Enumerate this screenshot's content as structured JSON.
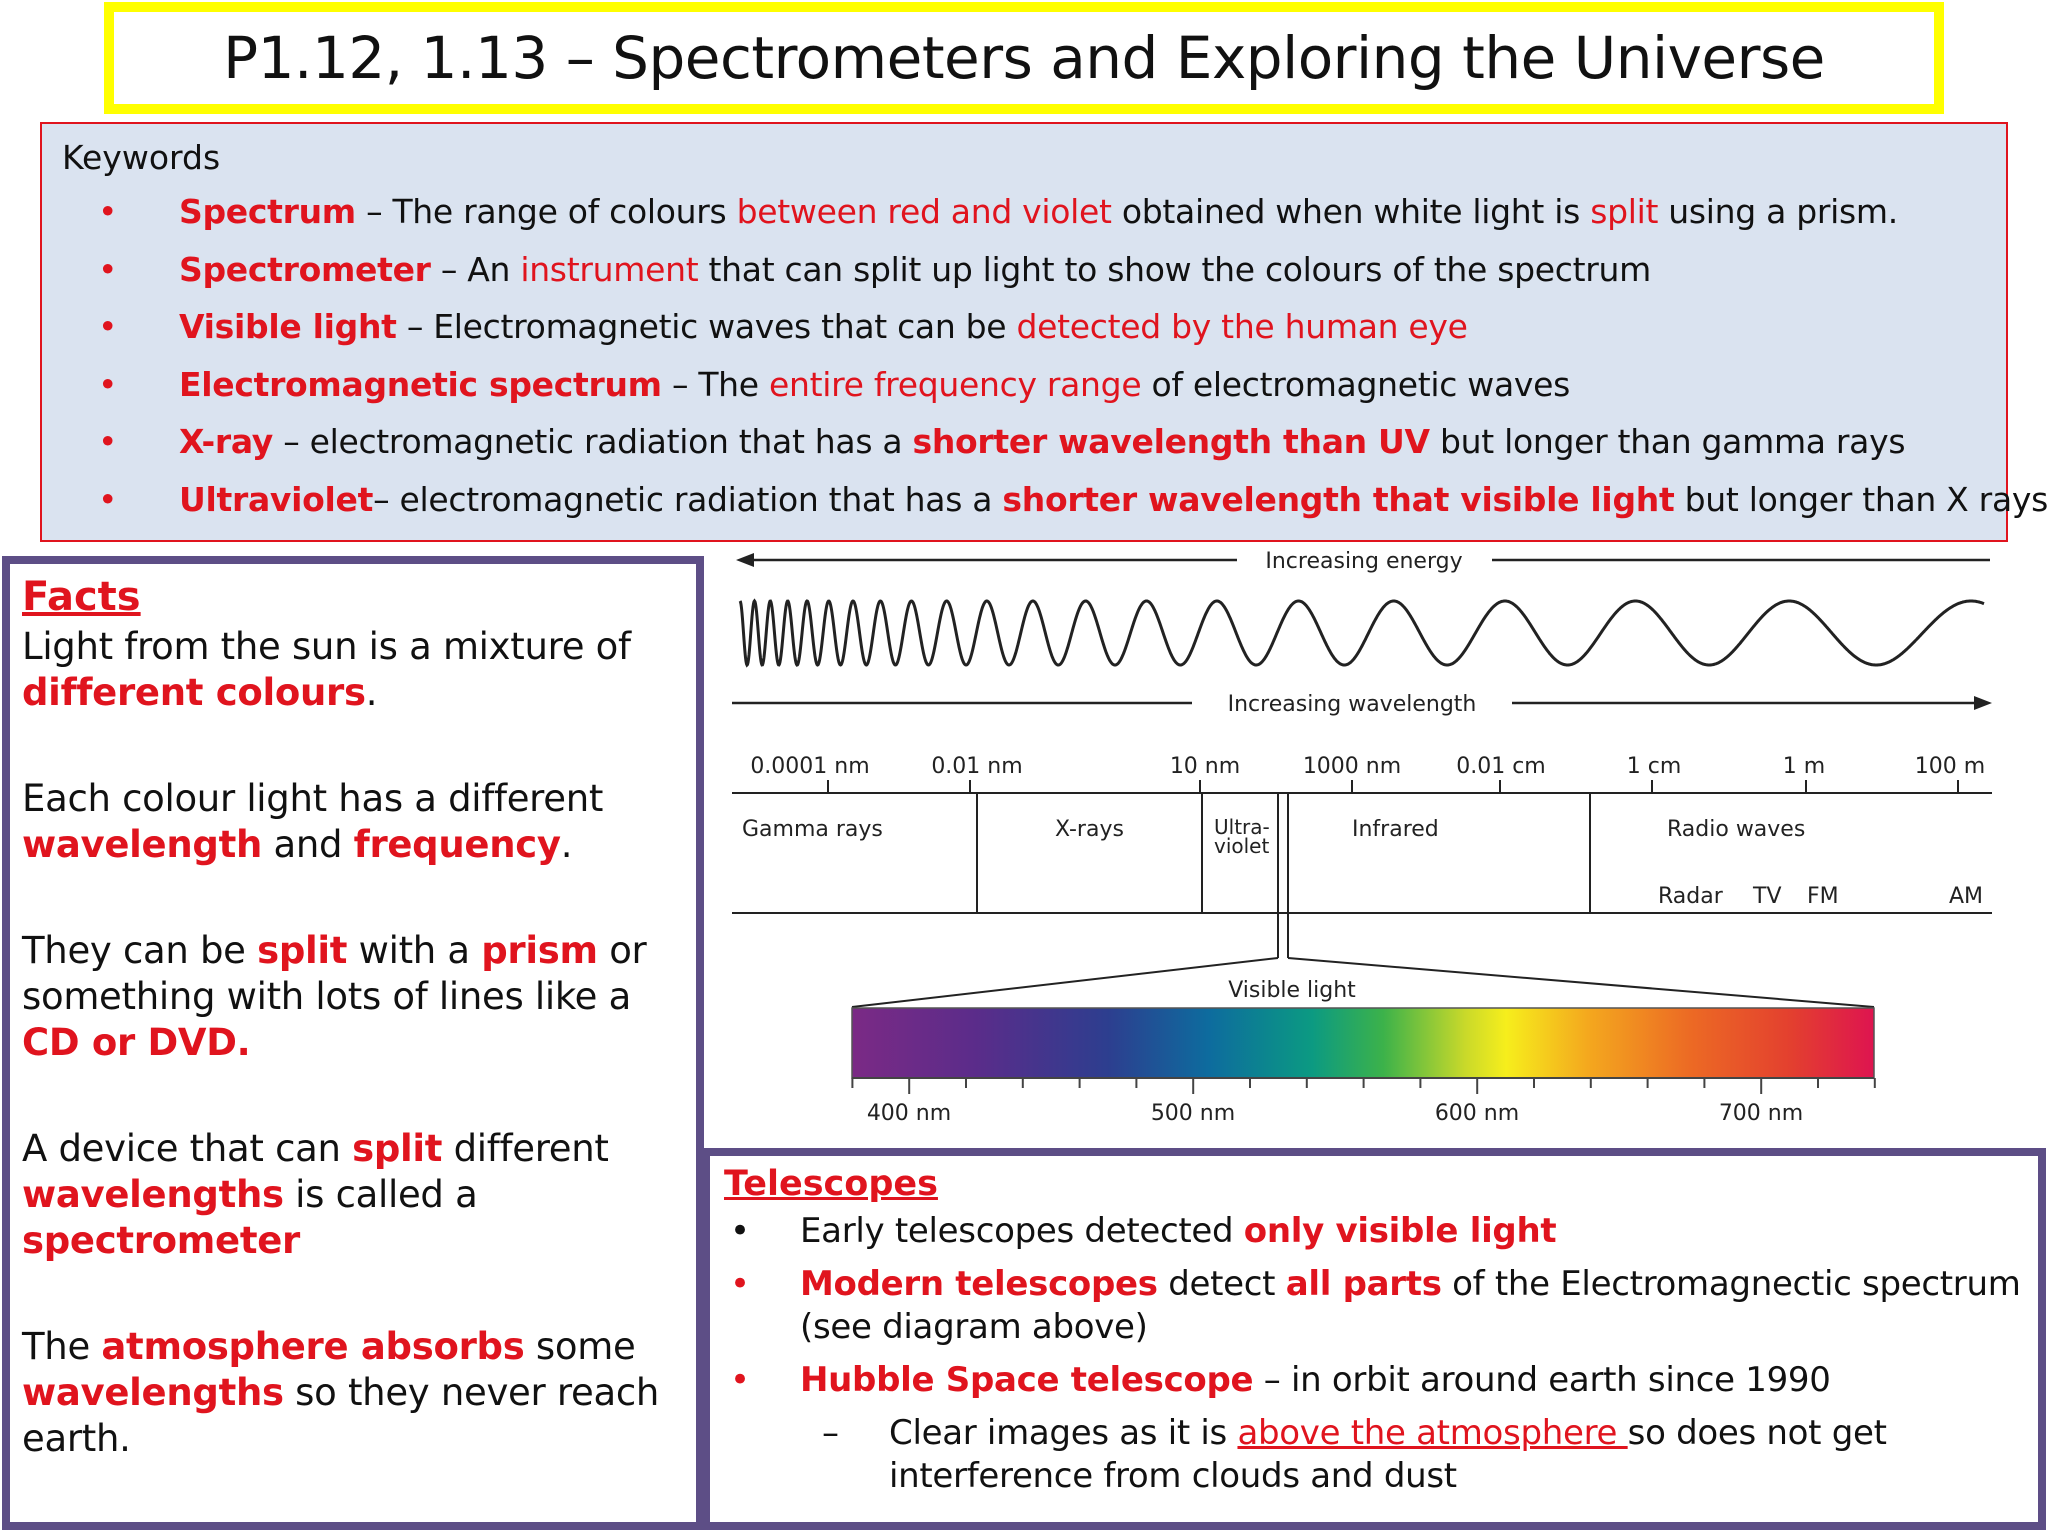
{
  "title": "P1.12, 1.13 – Spectrometers and Exploring the Universe",
  "keywords": {
    "heading": "Keywords",
    "items": [
      {
        "term": "Spectrum",
        "t1": " – The range of colours ",
        "h1": "between red and violet",
        "t2": " obtained when white light is ",
        "h2": "split",
        "t3": " using a  prism."
      },
      {
        "term": "Spectrometer",
        "t1": " – An ",
        "h1": "instrument",
        "t2": " that can split up light to show the colours of the spectrum"
      },
      {
        "term": "Visible light",
        "t1": " – Electromagnetic waves that can be ",
        "h1": "detected by the human eye"
      },
      {
        "term": "Electromagnetic spectrum",
        "t1": " – The ",
        "h1": "entire frequency range",
        "t2": " of electromagnetic waves"
      },
      {
        "term": "X-ray",
        "t1": " – electromagnetic radiation that has a ",
        "h1": "shorter wavelength than UV",
        "t2": " but longer than gamma rays"
      },
      {
        "term": "Ultraviolet",
        "t1": "– electromagnetic radiation that has a ",
        "h1": "shorter wavelength that visible light",
        "t2": " but longer than X rays"
      }
    ]
  },
  "facts": {
    "heading": "Facts",
    "p1": {
      "a": "Light from the sun is a mixture of ",
      "b": "different colours",
      "c": "."
    },
    "p2": {
      "a": "Each colour light has a different ",
      "b": "wavelength",
      "c": " and ",
      "d": "frequency",
      "e": "."
    },
    "p3": {
      "a": "They can be ",
      "b": "split",
      "c": " with a ",
      "d": "prism",
      "e": " or something with lots of lines like a ",
      "f": "CD or DVD."
    },
    "p4": {
      "a": "A device that can ",
      "b": "split",
      "c": " different ",
      "d": "wavelengths",
      "e": " is called a ",
      "f": "spectrometer"
    },
    "p5": {
      "a": "The ",
      "b": "atmosphere absorbs",
      "c": " some ",
      "d": "wavelengths",
      "e": " so they never reach earth."
    }
  },
  "diagram": {
    "energy_label": "Increasing energy",
    "wavelength_label": "Increasing wavelength",
    "scale": [
      "0.0001 nm",
      "0.01 nm",
      "10 nm",
      "1000 nm",
      "0.01 cm",
      "1 cm",
      "1 m",
      "100 m"
    ],
    "bands": {
      "gamma": "Gamma rays",
      "xray": "X-rays",
      "uv1": "Ultra-",
      "uv2": "violet",
      "ir": "Infrared",
      "radio": "Radio waves"
    },
    "radio_sub": [
      "Radar",
      "TV",
      "FM",
      "AM"
    ],
    "visible_label": "Visible light",
    "visible_scale": [
      "400 nm",
      "500 nm",
      "600 nm",
      "700 nm"
    ]
  },
  "telescopes": {
    "heading": "Telescopes",
    "i1": {
      "a": "Early telescopes detected ",
      "b": "only visible light"
    },
    "i2": {
      "a": "Modern telescopes",
      "b": " detect ",
      "c": "all parts",
      "d": " of the Electromagnectic spectrum (see diagram above)"
    },
    "i3": {
      "a": "Hubble Space telescope",
      "b": " – in orbit around earth since 1990"
    },
    "i4": {
      "a": "Clear images as it is ",
      "b": "above the atmosphere ",
      "c": "so does not get interference from clouds and dust"
    }
  },
  "colors": {
    "accent_red": "#e0141e",
    "title_border": "#ffff00",
    "panel_border": "#5d4e86",
    "keywords_bg": "#dae3f0"
  },
  "bullet": "•",
  "dash": "–"
}
